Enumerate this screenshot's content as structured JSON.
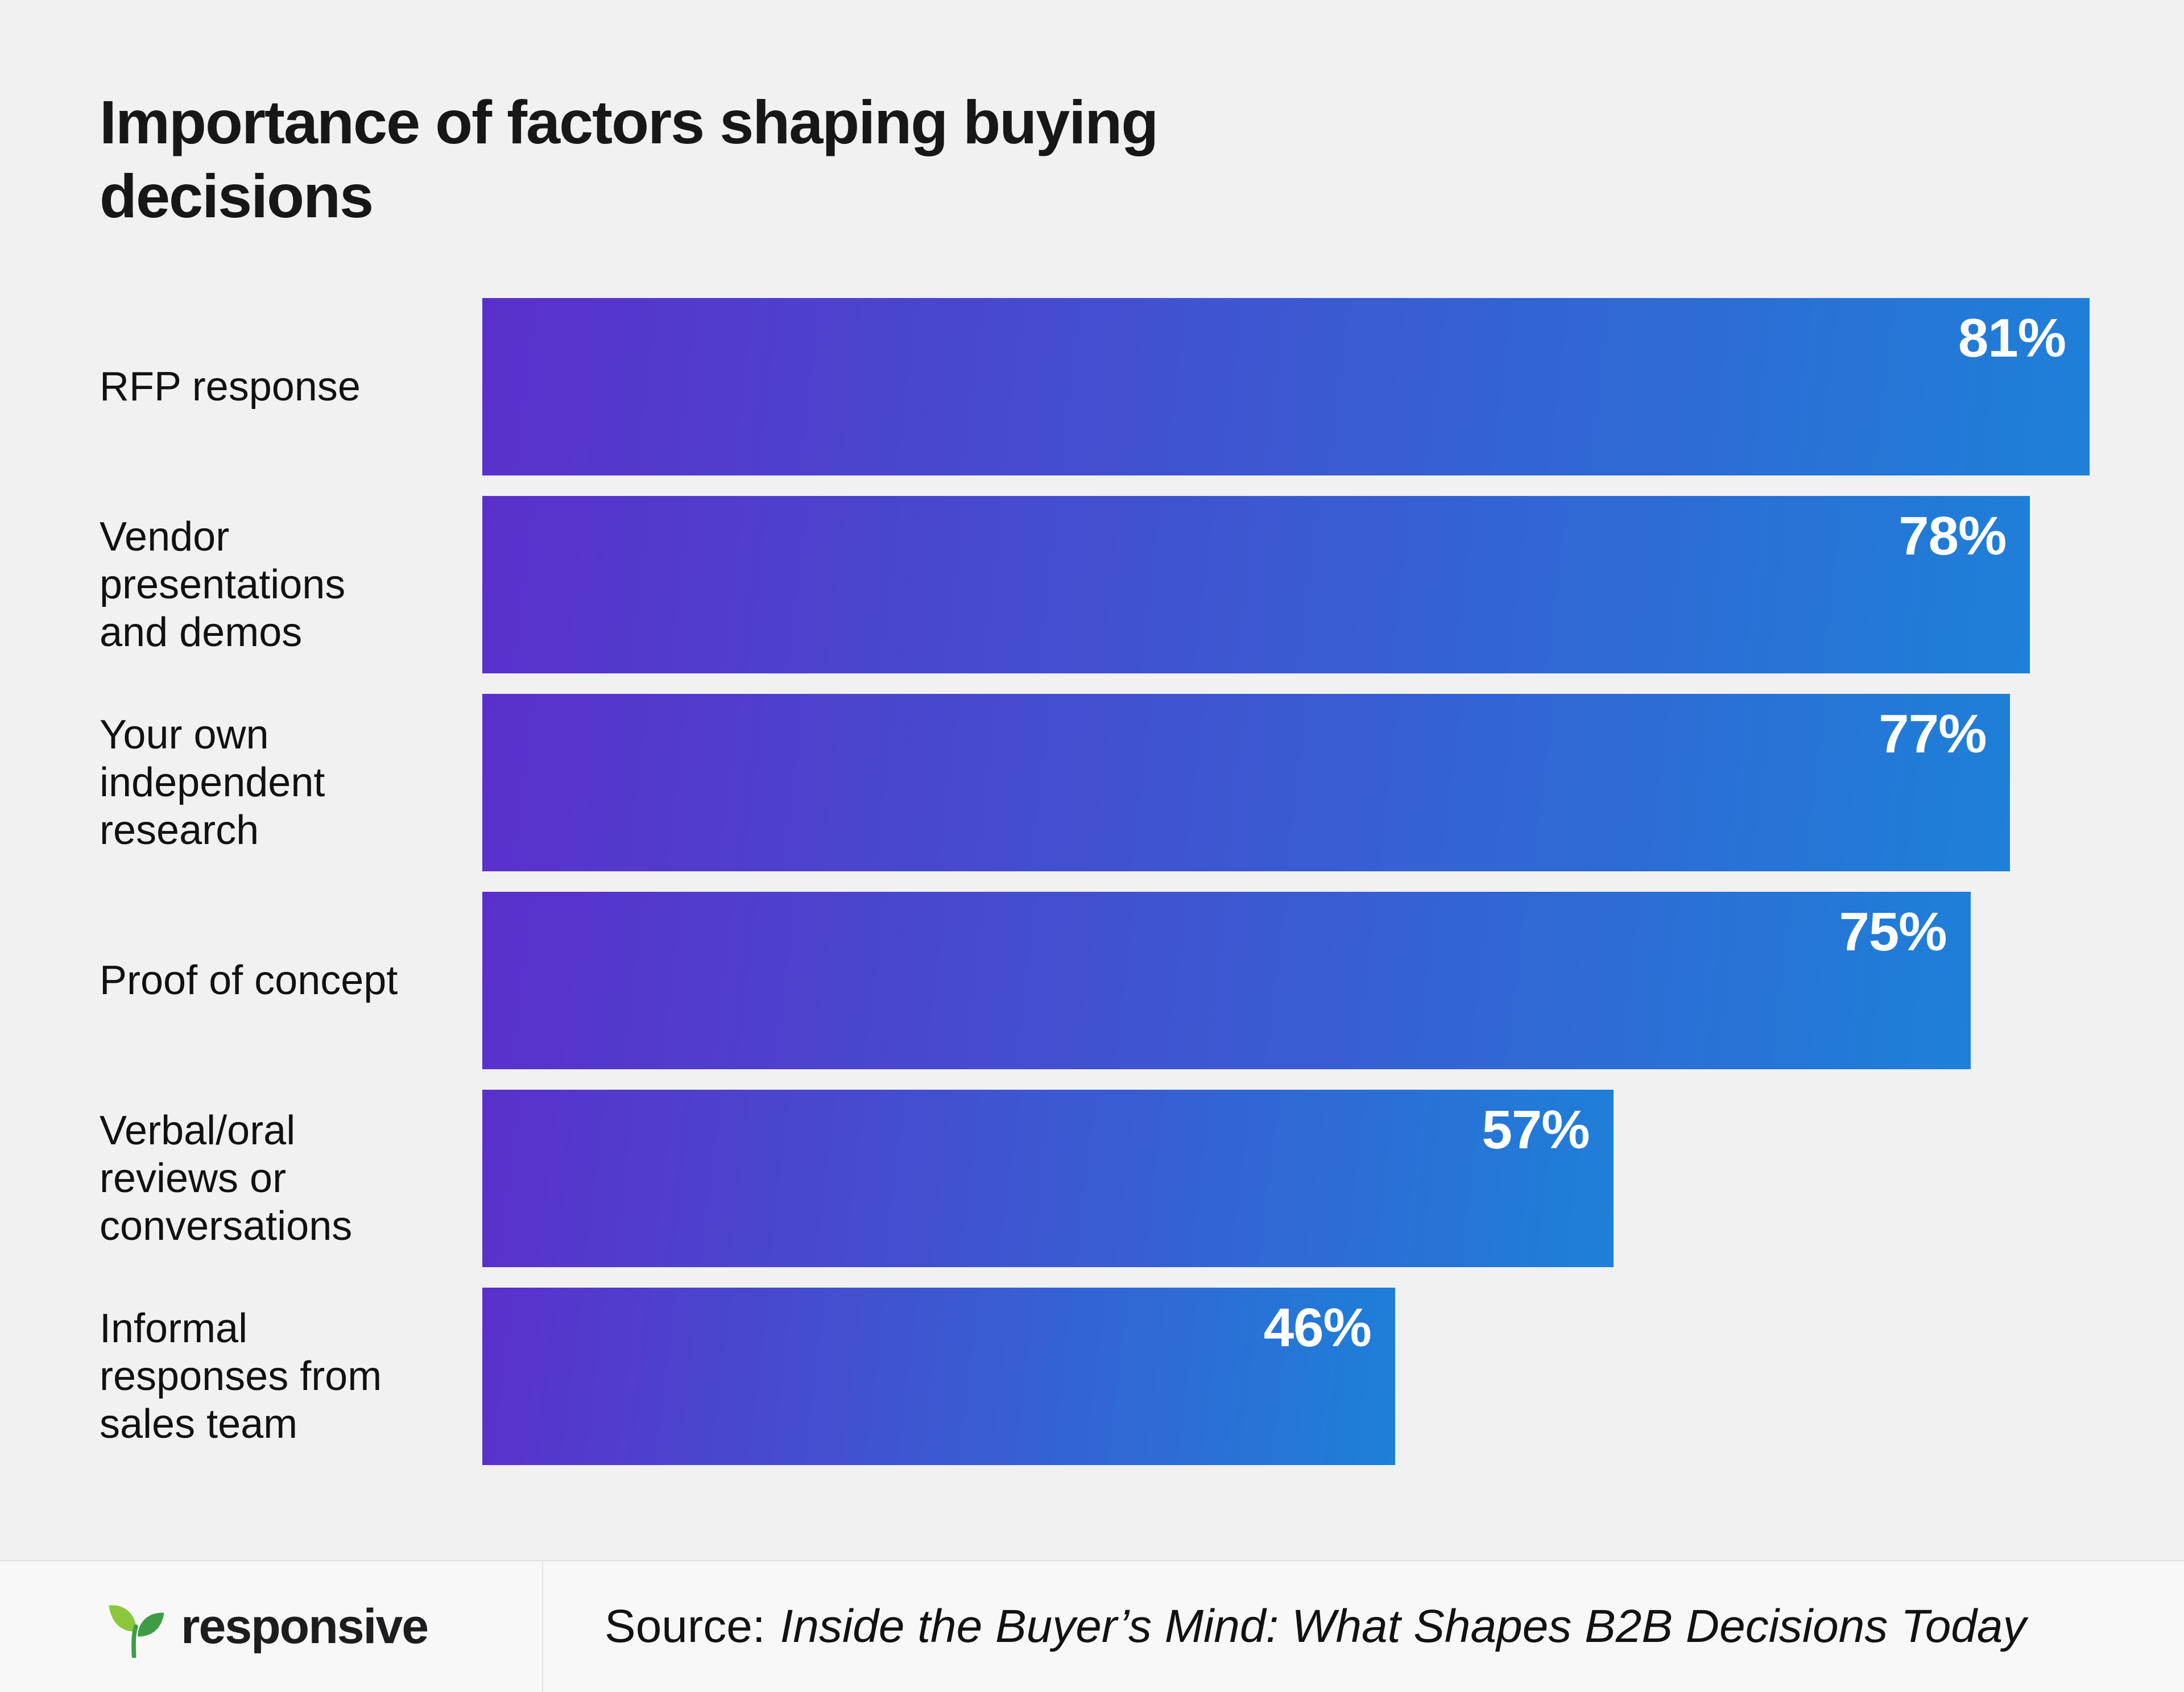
{
  "page": {
    "title": "Importance of factors shaping buying decisions"
  },
  "chart_data": {
    "type": "bar",
    "orientation": "horizontal",
    "title": "Importance of factors shaping buying decisions",
    "categories": [
      "RFP response",
      "Vendor presentations and demos",
      "Your own independent research",
      "Proof of concept",
      "Verbal/oral reviews or conversations",
      "Informal responses from sales team"
    ],
    "values": [
      81,
      78,
      77,
      75,
      57,
      46
    ],
    "value_labels": [
      "81%",
      "78%",
      "77%",
      "75%",
      "57%",
      "46%"
    ],
    "xlabel": "",
    "ylabel": "",
    "xlim": [
      0,
      100
    ],
    "grid": false,
    "legend": false,
    "value_label_position": "inside-top-right",
    "bar_gradient": [
      "#5a30cb",
      "#1e80d8"
    ]
  },
  "footer": {
    "logo_text": "responsive",
    "logo_icon": "leaf-sprout-icon",
    "source_prefix": "Source:",
    "source_title": "Inside the Buyer’s Mind: What Shapes B2B Decisions Today"
  },
  "colors": {
    "page_background": "#f1f1f2",
    "footer_background": "#f8f8f8",
    "divider": "#e2e2e3",
    "text": "#111111",
    "bar_value_text": "#ffffff",
    "bar_gradient_start": "#5a30cb",
    "bar_gradient_end": "#1e80d8",
    "logo_green_light": "#8cc63f",
    "logo_green_dark": "#3f9c46"
  }
}
